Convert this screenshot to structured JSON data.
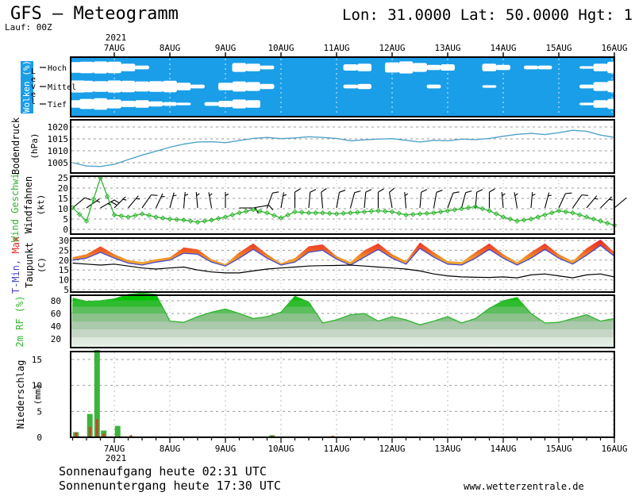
{
  "header": {
    "title": "GFS — Meteogramm",
    "run_label": "Lauf: 00Z",
    "coordinates": "Lon: 31.0000 Lat: 50.0000 Hgt: 1"
  },
  "time_axis": {
    "year": "2021",
    "tick_labels": [
      "7AUG",
      "8AUG",
      "9AUG",
      "10AUG",
      "11AUG",
      "12AUG",
      "13AUG",
      "14AUG",
      "15AUG",
      "16AUG"
    ],
    "start_day": -0.75,
    "step_day": 0.25
  },
  "panels": {
    "clouds": {
      "label": "Wolken (%)",
      "level_label": "Level",
      "rows": [
        "Hoch",
        "Mittel",
        "Tief"
      ]
    },
    "pressure": {
      "label": "Bodendruck",
      "unit": "(hPa)",
      "yticks": [
        1005,
        1010,
        1015,
        1020
      ]
    },
    "wind": {
      "label": "Wind Geschwi.",
      "label2": "Windfahnen",
      "unit": "(kt)",
      "yticks": [
        0,
        5,
        10,
        15,
        20,
        25
      ]
    },
    "temperature": {
      "label_min": "T-Min,",
      "label_max": "Max",
      "label2": "Taupunkt",
      "unit": "(C)",
      "yticks": [
        5,
        10,
        15,
        20,
        25,
        30
      ]
    },
    "humidity": {
      "label": "2m RF (%)",
      "yticks": [
        20,
        40,
        60,
        80
      ]
    },
    "precip": {
      "label": "Niederschlag",
      "unit": "(mm)",
      "yticks": [
        0,
        5,
        10,
        15
      ]
    }
  },
  "footer": {
    "sunrise": "Sonnenaufgang heute 02:31 UTC",
    "sunset": "Sonnenuntergang heute 17:30 UTC",
    "website": "www.wetterzentrale.de"
  },
  "colors": {
    "cloud_bg": "#1a9ee8",
    "cloud_white": "#ffffff",
    "pressure_line": "#4fa3c9",
    "wind_green": "#2fb52f",
    "temp_min_line": "#4848d0",
    "temp_pink": "#ff3cc8",
    "temp_red": "#ee2828",
    "temp_orange": "#f09a28",
    "dewpoint": "#000000",
    "rf_top_green": "#00c400",
    "rf_outline": "#2fb52f",
    "precip_green": "#3cb43c",
    "precip_red": "#c04a28",
    "grid": "#9a9a9a",
    "vgrid": "#bbbbbb"
  },
  "chart_data": [
    {
      "type": "heatmap",
      "name": "clouds",
      "title": "Wolken (%)",
      "unit": "%",
      "row_labels": [
        "Hoch",
        "Mittel",
        "Tief"
      ],
      "levels": {
        "hoch": [
          85,
          90,
          95,
          90,
          60,
          30,
          0,
          0,
          0,
          0,
          0,
          0,
          70,
          60,
          30,
          0,
          0,
          0,
          0,
          0,
          50,
          60,
          0,
          80,
          95,
          70,
          40,
          50,
          0,
          0,
          60,
          40,
          0,
          30,
          30,
          0,
          0,
          20,
          60,
          90
        ],
        "mittel": [
          95,
          90,
          85,
          95,
          90,
          80,
          85,
          90,
          60,
          30,
          0,
          60,
          80,
          70,
          40,
          0,
          0,
          0,
          0,
          0,
          30,
          40,
          0,
          0,
          0,
          0,
          30,
          0,
          0,
          0,
          20,
          0,
          0,
          0,
          0,
          0,
          0,
          30,
          70,
          90
        ],
        "tief": [
          60,
          80,
          90,
          70,
          50,
          60,
          40,
          30,
          20,
          0,
          30,
          50,
          70,
          60,
          0,
          0,
          0,
          0,
          0,
          0,
          0,
          0,
          0,
          0,
          0,
          0,
          0,
          0,
          0,
          0,
          0,
          0,
          0,
          0,
          0,
          0,
          0,
          20,
          60,
          80
        ]
      }
    },
    {
      "type": "line",
      "name": "pressure",
      "title": "Bodendruck",
      "unit": "hPa",
      "ylim": [
        1000.7,
        1023
      ],
      "values": [
        1005.0,
        1003.6,
        1003.4,
        1004.3,
        1006.3,
        1008.2,
        1009.8,
        1011.5,
        1012.8,
        1013.7,
        1013.8,
        1013.4,
        1014.3,
        1015.2,
        1015.6,
        1015.1,
        1015.4,
        1015.9,
        1015.6,
        1015.2,
        1014.2,
        1014.6,
        1014.9,
        1015.1,
        1014.4,
        1013.7,
        1014.4,
        1014.2,
        1014.9,
        1014.7,
        1015.2,
        1016.1,
        1016.9,
        1017.3,
        1016.8,
        1017.6,
        1018.6,
        1018.2,
        1016.6,
        1015.6
      ]
    },
    {
      "type": "line",
      "name": "wind_speed",
      "title": "Wind Geschwi. / Windfahnen",
      "unit": "kt",
      "ylim": [
        0,
        26
      ],
      "values": [
        10.5,
        4,
        25,
        7,
        6,
        7.5,
        6,
        5,
        4.5,
        3.5,
        4.5,
        6,
        8,
        9.5,
        8,
        5.5,
        8.5,
        8,
        8,
        7.5,
        8,
        8.5,
        9,
        8.5,
        7,
        7.5,
        8,
        9,
        10,
        11,
        9,
        6,
        4,
        5,
        7,
        9,
        8,
        6,
        4,
        2
      ],
      "barb_directions_deg": [
        50,
        55,
        60,
        45,
        40,
        35,
        25,
        15,
        5,
        355,
        350,
        0,
        90,
        80,
        20,
        10,
        0,
        5,
        355,
        10,
        15,
        5,
        0,
        350,
        355,
        5,
        10,
        20,
        15,
        5,
        0,
        355,
        350,
        5,
        15,
        25,
        35,
        40,
        45,
        50
      ]
    },
    {
      "type": "area",
      "name": "temperature",
      "title": "T-Min, Max / Taupunkt",
      "unit": "C",
      "ylim": [
        5,
        31
      ],
      "series": [
        {
          "name": "T-Max",
          "values": [
            21.5,
            23,
            27,
            23,
            20,
            19,
            20.5,
            21.5,
            26.5,
            25.5,
            20.5,
            18,
            24,
            28.5,
            23,
            18.5,
            21,
            27,
            28,
            22,
            19,
            25,
            28.5,
            23,
            19.5,
            29,
            24,
            19.5,
            19,
            24,
            28.5,
            23,
            19,
            24,
            28.5,
            23,
            19.5,
            26,
            30.5,
            24
          ]
        },
        {
          "name": "T-Min",
          "values": [
            20,
            21,
            24,
            21,
            18.5,
            17.5,
            19,
            20,
            23.5,
            23,
            19,
            17,
            21,
            25.5,
            21,
            17.5,
            19,
            24,
            25,
            20.5,
            17.5,
            21.5,
            25.5,
            21,
            18,
            26,
            21.5,
            18,
            17.5,
            21,
            25.5,
            21,
            17.5,
            21,
            25.5,
            21,
            18,
            22.5,
            27.5,
            22
          ]
        },
        {
          "name": "Taupunkt",
          "values": [
            18.5,
            18,
            17.5,
            18,
            17,
            16,
            15.5,
            16,
            16.5,
            15,
            14,
            13.5,
            13.5,
            14.5,
            15.5,
            16,
            16.5,
            17,
            17.2,
            17.3,
            17.5,
            17,
            16.5,
            16,
            15.5,
            14.5,
            13,
            12,
            11.5,
            11.3,
            11.2,
            11.5,
            11,
            12.5,
            13,
            12,
            11,
            12.5,
            13,
            11.5
          ]
        }
      ]
    },
    {
      "type": "area",
      "name": "relative_humidity_2m",
      "title": "2m RF (%)",
      "unit": "%",
      "ylim": [
        10,
        95
      ],
      "values": [
        84,
        79,
        80,
        83,
        90,
        92,
        90,
        48,
        46,
        55,
        62,
        67,
        60,
        52,
        55,
        62,
        87,
        78,
        45,
        50,
        58,
        60,
        48,
        55,
        50,
        42,
        48,
        55,
        45,
        52,
        68,
        80,
        85,
        60,
        45,
        46,
        52,
        58,
        48,
        52
      ]
    },
    {
      "type": "bar",
      "name": "precipitation",
      "title": "Niederschlag",
      "unit": "mm",
      "ylim": [
        0,
        16.5
      ],
      "bars": [
        {
          "t": -0.69,
          "total": 1.0,
          "conv": 0.9
        },
        {
          "t": -0.44,
          "total": 4.5,
          "conv": 2.0
        },
        {
          "t": -0.31,
          "total": 17.5,
          "conv": 3.5
        },
        {
          "t": -0.19,
          "total": 1.3,
          "conv": 0.7
        },
        {
          "t": 0.06,
          "total": 2.2,
          "conv": 0
        },
        {
          "t": 0.3,
          "total": 0,
          "conv": 0.4
        },
        {
          "t": 2.84,
          "total": 0.4,
          "conv": 0.3
        },
        {
          "t": 3.93,
          "total": 0,
          "conv": 0.3
        }
      ]
    }
  ]
}
